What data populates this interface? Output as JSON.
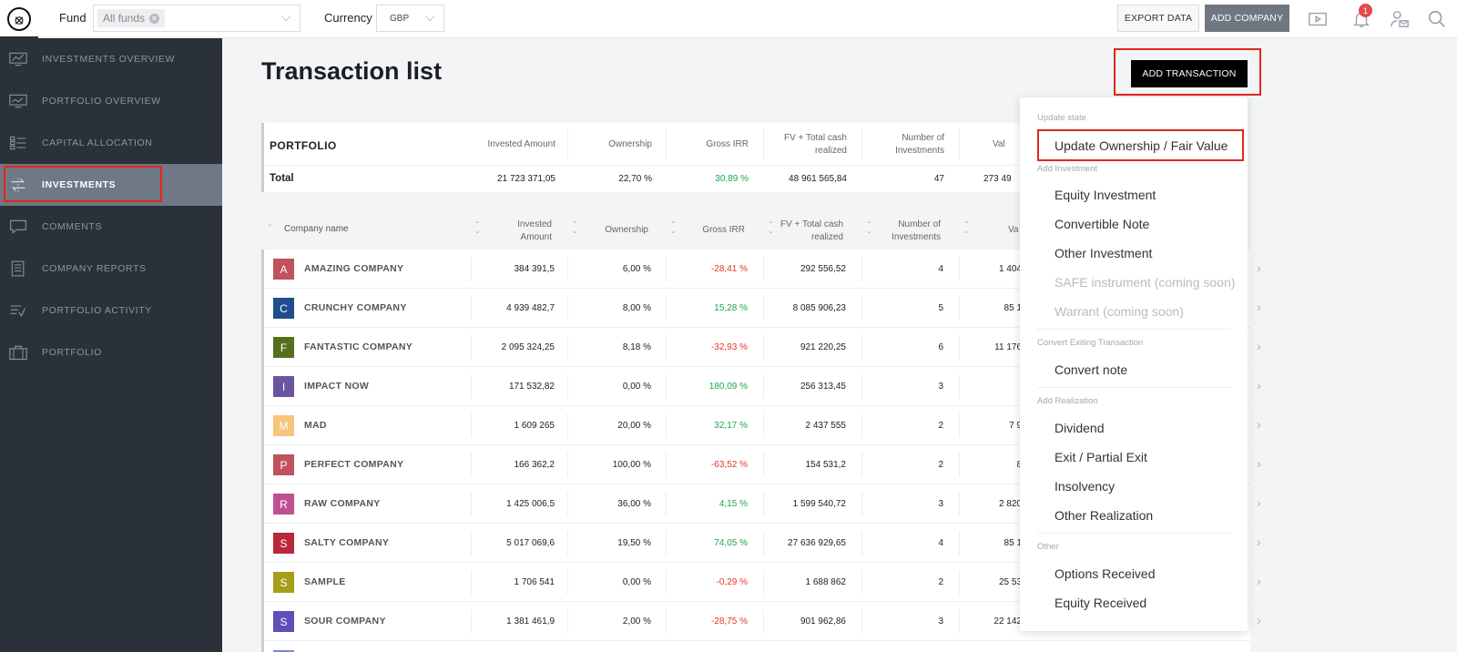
{
  "topbar": {
    "fund_label": "Fund",
    "fund_chip": "All funds",
    "currency_label": "Currency",
    "currency_value": "GBP",
    "export_label": "EXPORT DATA",
    "add_company_label": "ADD COMPANY",
    "notification_count": "1"
  },
  "sidebar": {
    "items": [
      {
        "label": "INVESTMENTS OVERVIEW",
        "icon": "chart-monitor-icon"
      },
      {
        "label": "PORTFOLIO OVERVIEW",
        "icon": "monitor-chart-icon"
      },
      {
        "label": "CAPITAL ALLOCATION",
        "icon": "allocation-list-icon"
      },
      {
        "label": "INVESTMENTS",
        "icon": "transfer-arrows-icon",
        "active": true
      },
      {
        "label": "COMMENTS",
        "icon": "comment-icon"
      },
      {
        "label": "COMPANY REPORTS",
        "icon": "document-icon"
      },
      {
        "label": "PORTFOLIO ACTIVITY",
        "icon": "activity-icon"
      },
      {
        "label": "PORTFOLIO",
        "icon": "briefcase-icon"
      }
    ]
  },
  "main": {
    "title": "Transaction list",
    "add_transaction_label": "ADD TRANSACTION"
  },
  "portfolio": {
    "title": "PORTFOLIO",
    "headers": [
      "Invested Amount",
      "Ownership",
      "Gross IRR",
      "FV + Total cash realized",
      "Number of Investments",
      "Val"
    ],
    "total": {
      "label": "Total",
      "invested": "21 723 371,05",
      "ownership": "22,70 %",
      "irr": "30,89 %",
      "fv": "48 961 565,84",
      "count": "47",
      "val": "273 49"
    }
  },
  "table": {
    "headers": {
      "company": "Company name",
      "invested": "Invested Amount",
      "ownership": "Ownership",
      "irr": "Gross IRR",
      "fv": "FV + Total cash realized",
      "count": "Number of Investments",
      "val": "Va"
    },
    "rows": [
      {
        "letter": "A",
        "color": "#c0525e",
        "name": "AMAZING COMPANY",
        "invested": "384 391,5",
        "ownership": "6,00 %",
        "irr": "-28,41 %",
        "irr_sign": "neg",
        "fv": "292 556,52",
        "count": "4",
        "val": "1 404"
      },
      {
        "letter": "C",
        "color": "#1f4e8c",
        "name": "CRUNCHY COMPANY",
        "invested": "4 939 482,7",
        "ownership": "8,00 %",
        "irr": "15,28 %",
        "irr_sign": "pos",
        "fv": "8 085 906,23",
        "count": "5",
        "val": "85 1"
      },
      {
        "letter": "F",
        "color": "#55701d",
        "name": "FANTASTIC COMPANY",
        "invested": "2 095 324,25",
        "ownership": "8,18 %",
        "irr": "-32,93 %",
        "irr_sign": "neg",
        "fv": "921 220,25",
        "count": "6",
        "val": "11 176"
      },
      {
        "letter": "I",
        "color": "#6b55a0",
        "name": "IMPACT NOW",
        "invested": "171 532,82",
        "ownership": "0,00 %",
        "irr": "180,09 %",
        "irr_sign": "pos",
        "fv": "256 313,45",
        "count": "3",
        "val": ""
      },
      {
        "letter": "M",
        "color": "#f7c47a",
        "name": "MAD",
        "invested": "1 609 265",
        "ownership": "20,00 %",
        "irr": "32,17 %",
        "irr_sign": "pos",
        "fv": "2 437 555",
        "count": "2",
        "val": "7 9"
      },
      {
        "letter": "P",
        "color": "#c0525e",
        "name": "PERFECT COMPANY",
        "invested": "166 362,2",
        "ownership": "100,00 %",
        "irr": "-63,52 %",
        "irr_sign": "neg",
        "fv": "154 531,2",
        "count": "2",
        "val": "8"
      },
      {
        "letter": "R",
        "color": "#c04f92",
        "name": "RAW COMPANY",
        "invested": "1 425 006,5",
        "ownership": "36,00 %",
        "irr": "4,15 %",
        "irr_sign": "pos",
        "fv": "1 599 540,72",
        "count": "3",
        "val": "2 820"
      },
      {
        "letter": "S",
        "color": "#b8283a",
        "name": "SALTY COMPANY",
        "invested": "5 017 069,6",
        "ownership": "19,50 %",
        "irr": "74,05 %",
        "irr_sign": "pos",
        "fv": "27 636 929,65",
        "count": "4",
        "val": "85 1"
      },
      {
        "letter": "S",
        "color": "#a59e1c",
        "name": "SAMPLE",
        "invested": "1 706 541",
        "ownership": "0,00 %",
        "irr": "-0,29 %",
        "irr_sign": "neg",
        "fv": "1 688 862",
        "count": "2",
        "val": "25 53"
      },
      {
        "letter": "S",
        "color": "#5e4fb8",
        "name": "SOUR COMPANY",
        "invested": "1 381 461,9",
        "ownership": "2,00 %",
        "irr": "-28,75 %",
        "irr_sign": "neg",
        "fv": "901 962,86",
        "count": "3",
        "val": "22 142"
      }
    ]
  },
  "menu": {
    "sections": [
      {
        "title": "Update state",
        "items": [
          {
            "label": "Update Ownership / Fair Value",
            "disabled": false
          }
        ]
      },
      {
        "title": "Add Investment",
        "items": [
          {
            "label": "Equity Investment",
            "disabled": false
          },
          {
            "label": "Convertible Note",
            "disabled": false
          },
          {
            "label": "Other Investment",
            "disabled": false
          },
          {
            "label": "SAFE instrument (coming soon)",
            "disabled": true
          },
          {
            "label": "Warrant (coming soon)",
            "disabled": true
          }
        ]
      },
      {
        "title": "Convert Exiting Transaction",
        "items": [
          {
            "label": "Convert note",
            "disabled": false
          }
        ]
      },
      {
        "title": "Add Realization",
        "items": [
          {
            "label": "Dividend",
            "disabled": false
          },
          {
            "label": "Exit / Partial Exit",
            "disabled": false
          },
          {
            "label": "Insolvency",
            "disabled": false
          },
          {
            "label": "Other Realization",
            "disabled": false
          }
        ]
      },
      {
        "title": "Other",
        "items": [
          {
            "label": "Options Received",
            "disabled": false
          },
          {
            "label": "Equity Received",
            "disabled": false
          }
        ]
      }
    ]
  }
}
